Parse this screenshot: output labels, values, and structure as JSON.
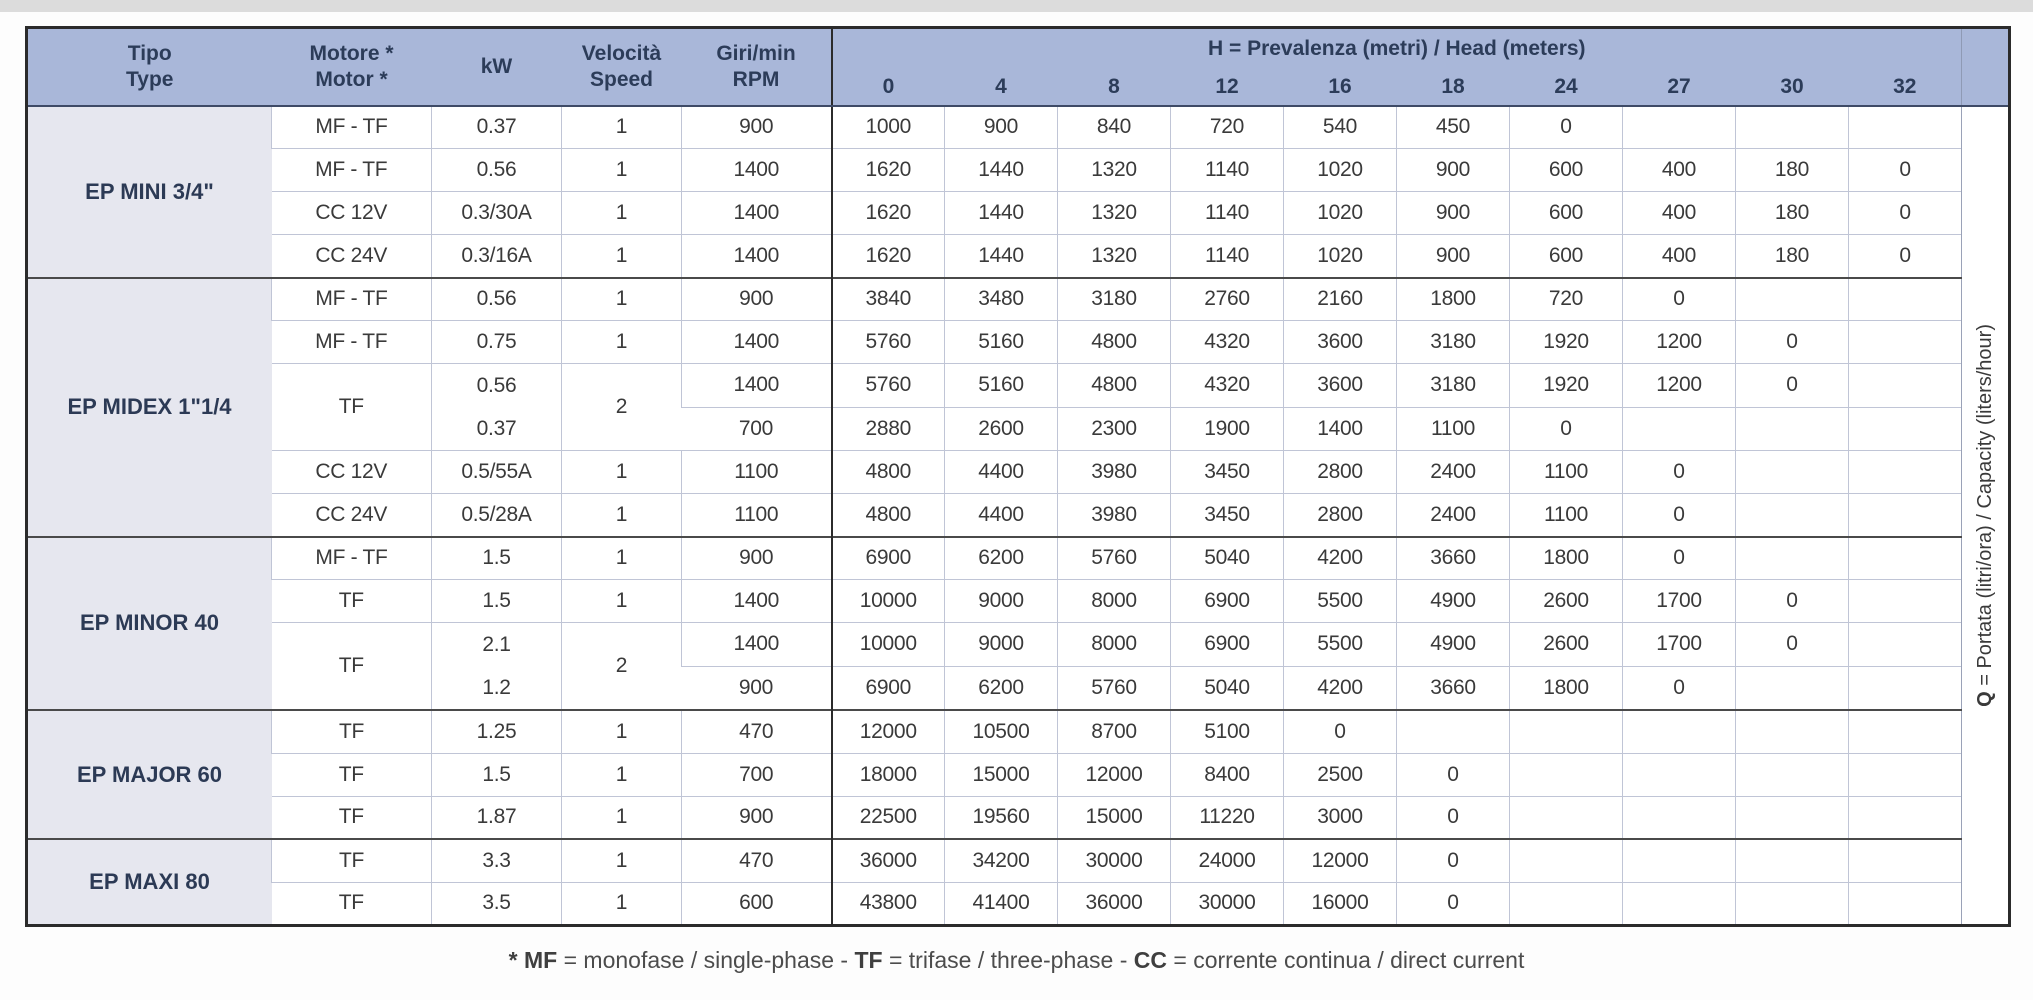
{
  "header": {
    "tipo": [
      "Tipo",
      "Type"
    ],
    "motore": [
      "Motore *",
      "Motor *"
    ],
    "kw": "kW",
    "velocita": [
      "Velocità",
      "Speed"
    ],
    "giri": [
      "Giri/min",
      "RPM"
    ],
    "h_bold": "H",
    "h_rest": " = Prevalenza (metri) / Head (meters)",
    "h_cols": [
      "0",
      "4",
      "8",
      "12",
      "16",
      "18",
      "24",
      "27",
      "30",
      "32"
    ]
  },
  "q_label": {
    "bold": "Q",
    "rest": " = Portata (litri/ora) / Capacity (liters/hour)"
  },
  "groups": [
    {
      "type": "EP MINI 3/4\"",
      "rows": [
        {
          "motor": "MF - TF",
          "kw": "0.37",
          "speed": "1",
          "rpm": "900",
          "values": [
            "1000",
            "900",
            "840",
            "720",
            "540",
            "450",
            "0",
            "",
            "",
            ""
          ]
        },
        {
          "motor": "MF - TF",
          "kw": "0.56",
          "speed": "1",
          "rpm": "1400",
          "values": [
            "1620",
            "1440",
            "1320",
            "1140",
            "1020",
            "900",
            "600",
            "400",
            "180",
            "0"
          ]
        },
        {
          "motor": "CC 12V",
          "kw": "0.3/30A",
          "speed": "1",
          "rpm": "1400",
          "values": [
            "1620",
            "1440",
            "1320",
            "1140",
            "1020",
            "900",
            "600",
            "400",
            "180",
            "0"
          ]
        },
        {
          "motor": "CC 24V",
          "kw": "0.3/16A",
          "speed": "1",
          "rpm": "1400",
          "values": [
            "1620",
            "1440",
            "1320",
            "1140",
            "1020",
            "900",
            "600",
            "400",
            "180",
            "0"
          ]
        }
      ]
    },
    {
      "type": "EP MIDEX 1\"1/4",
      "rows": [
        {
          "motor": "MF - TF",
          "kw": "0.56",
          "speed": "1",
          "rpm": "900",
          "values": [
            "3840",
            "3480",
            "3180",
            "2760",
            "2160",
            "1800",
            "720",
            "0",
            "",
            ""
          ]
        },
        {
          "motor": "MF - TF",
          "kw": "0.75",
          "speed": "1",
          "rpm": "1400",
          "values": [
            "5760",
            "5160",
            "4800",
            "4320",
            "3600",
            "3180",
            "1920",
            "1200",
            "0",
            ""
          ]
        },
        {
          "motor": "TF",
          "kw": [
            "0.56",
            "0.37"
          ],
          "speed": "2",
          "span": 2,
          "rpm": "1400",
          "values": [
            "5760",
            "5160",
            "4800",
            "4320",
            "3600",
            "3180",
            "1920",
            "1200",
            "0",
            ""
          ]
        },
        {
          "cont": true,
          "rpm": "700",
          "values": [
            "2880",
            "2600",
            "2300",
            "1900",
            "1400",
            "1100",
            "0",
            "",
            "",
            ""
          ]
        },
        {
          "motor": "CC 12V",
          "kw": "0.5/55A",
          "speed": "1",
          "rpm": "1100",
          "values": [
            "4800",
            "4400",
            "3980",
            "3450",
            "2800",
            "2400",
            "1100",
            "0",
            "",
            ""
          ]
        },
        {
          "motor": "CC 24V",
          "kw": "0.5/28A",
          "speed": "1",
          "rpm": "1100",
          "values": [
            "4800",
            "4400",
            "3980",
            "3450",
            "2800",
            "2400",
            "1100",
            "0",
            "",
            ""
          ]
        }
      ]
    },
    {
      "type": "EP MINOR 40",
      "rows": [
        {
          "motor": "MF - TF",
          "kw": "1.5",
          "speed": "1",
          "rpm": "900",
          "values": [
            "6900",
            "6200",
            "5760",
            "5040",
            "4200",
            "3660",
            "1800",
            "0",
            "",
            ""
          ]
        },
        {
          "motor": "TF",
          "kw": "1.5",
          "speed": "1",
          "rpm": "1400",
          "values": [
            "10000",
            "9000",
            "8000",
            "6900",
            "5500",
            "4900",
            "2600",
            "1700",
            "0",
            ""
          ]
        },
        {
          "motor": "TF",
          "kw": [
            "2.1",
            "1.2"
          ],
          "speed": "2",
          "span": 2,
          "rpm": "1400",
          "values": [
            "10000",
            "9000",
            "8000",
            "6900",
            "5500",
            "4900",
            "2600",
            "1700",
            "0",
            ""
          ]
        },
        {
          "cont": true,
          "rpm": "900",
          "values": [
            "6900",
            "6200",
            "5760",
            "5040",
            "4200",
            "3660",
            "1800",
            "0",
            "",
            ""
          ]
        }
      ]
    },
    {
      "type": "EP MAJOR 60",
      "rows": [
        {
          "motor": "TF",
          "kw": "1.25",
          "speed": "1",
          "rpm": "470",
          "values": [
            "12000",
            "10500",
            "8700",
            "5100",
            "0",
            "",
            "",
            "",
            "",
            ""
          ]
        },
        {
          "motor": "TF",
          "kw": "1.5",
          "speed": "1",
          "rpm": "700",
          "values": [
            "18000",
            "15000",
            "12000",
            "8400",
            "2500",
            "0",
            "",
            "",
            "",
            ""
          ]
        },
        {
          "motor": "TF",
          "kw": "1.87",
          "speed": "1",
          "rpm": "900",
          "values": [
            "22500",
            "19560",
            "15000",
            "11220",
            "3000",
            "0",
            "",
            "",
            "",
            ""
          ]
        }
      ]
    },
    {
      "type": "EP MAXI 80",
      "rows": [
        {
          "motor": "TF",
          "kw": "3.3",
          "speed": "1",
          "rpm": "470",
          "values": [
            "36000",
            "34200",
            "30000",
            "24000",
            "12000",
            "0",
            "",
            "",
            "",
            ""
          ]
        },
        {
          "motor": "TF",
          "kw": "3.5",
          "speed": "1",
          "rpm": "600",
          "values": [
            "43800",
            "41400",
            "36000",
            "30000",
            "16000",
            "0",
            "",
            "",
            "",
            ""
          ]
        }
      ]
    }
  ],
  "footnote": [
    {
      "bold": "* MF",
      "text": " = monofase / single-phase - "
    },
    {
      "bold": "TF",
      "text": " = trifase / three-phase - "
    },
    {
      "bold": "CC",
      "text": " = corrente continua / direct current"
    }
  ],
  "colors": {
    "header_bg": "#a9b7d9",
    "type_bg": "#e6e7ef",
    "header_text": "#2c3c59",
    "data_text": "#3a3a3a",
    "thin_border": "#c0c5d6",
    "group_border": "#4a4a4a",
    "outer_border": "#2b2b2b"
  }
}
